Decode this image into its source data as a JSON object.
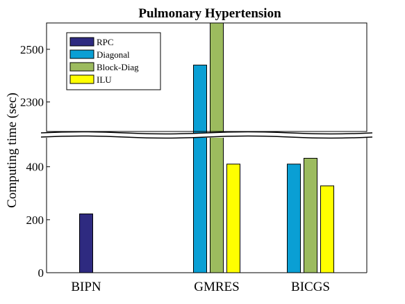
{
  "chart_data": {
    "type": "bar",
    "title": "Pulmonary Hypertension",
    "ylabel": "Computing time (sec)",
    "xlabel": "",
    "categories": [
      "BIPN",
      "GMRES",
      "BICGS"
    ],
    "axis_break": true,
    "lower_ylim": [
      0,
      520
    ],
    "upper_ylim": [
      2180,
      2600
    ],
    "lower_yticks": [
      "0",
      "200",
      "400"
    ],
    "upper_yticks": [
      "2300",
      "2500"
    ],
    "legend_position": "top-left",
    "series": [
      {
        "name": "RPC",
        "color": "#2e2a80",
        "values": [
          222,
          null,
          null
        ]
      },
      {
        "name": "Diagonal",
        "color": "#0a9fd4",
        "values": [
          null,
          2440,
          410
        ]
      },
      {
        "name": "Block-Diag",
        "color": "#9cbb5e",
        "values": [
          null,
          2610,
          432
        ]
      },
      {
        "name": "ILU",
        "color": "#ffff00",
        "values": [
          null,
          410,
          328
        ]
      }
    ]
  }
}
